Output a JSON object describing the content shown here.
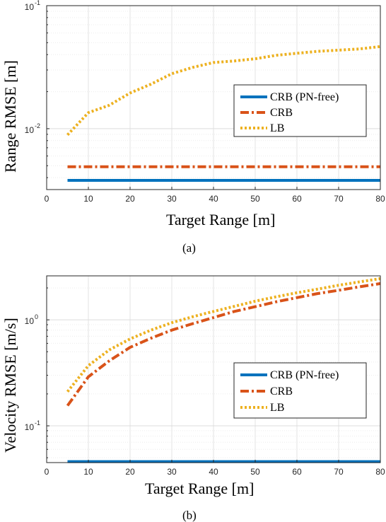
{
  "chart_data": [
    {
      "type": "line",
      "caption": "(a)",
      "xlabel": "Target Range [m]",
      "ylabel": "Range RMSE [m]",
      "xlim": [
        0,
        80
      ],
      "ylim": [
        0.0032,
        0.1
      ],
      "yscale": "log",
      "grid": true,
      "legend_position": "right",
      "x_ticks": [
        "0",
        "10",
        "20",
        "30",
        "40",
        "50",
        "60",
        "70",
        "80"
      ],
      "y_ticks": [
        {
          "base": "10",
          "exp": "-2",
          "value": 0.01
        },
        {
          "base": "10",
          "exp": "-1",
          "value": 0.1
        }
      ],
      "x": [
        5,
        10,
        15,
        20,
        25,
        30,
        35,
        40,
        45,
        50,
        55,
        60,
        65,
        70,
        75,
        80
      ],
      "series": [
        {
          "name": "CRB (PN-free)",
          "color": "#0072BD",
          "dash": "solid",
          "values": [
            0.0038,
            0.0038,
            0.0038,
            0.0038,
            0.0038,
            0.0038,
            0.0038,
            0.0038,
            0.0038,
            0.0038,
            0.0038,
            0.0038,
            0.0038,
            0.0038,
            0.0038,
            0.0038
          ]
        },
        {
          "name": "CRB",
          "color": "#D95319",
          "dash": "dashdot",
          "values": [
            0.0049,
            0.0049,
            0.0049,
            0.0049,
            0.0049,
            0.0049,
            0.0049,
            0.0049,
            0.0049,
            0.0049,
            0.0049,
            0.0049,
            0.0049,
            0.0049,
            0.0049,
            0.0049
          ]
        },
        {
          "name": "LB",
          "color": "#EDB120",
          "dash": "dotted",
          "values": [
            0.0089,
            0.0135,
            0.0155,
            0.0195,
            0.023,
            0.028,
            0.0315,
            0.0345,
            0.0355,
            0.037,
            0.0395,
            0.041,
            0.0425,
            0.0435,
            0.0445,
            0.0465
          ]
        }
      ]
    },
    {
      "type": "line",
      "caption": "(b)",
      "xlabel": "Target Range [m]",
      "ylabel": "Velocity RMSE [m/s]",
      "xlim": [
        0,
        80
      ],
      "ylim": [
        0.045,
        2.6
      ],
      "yscale": "log",
      "grid": true,
      "legend_position": "right",
      "x_ticks": [
        "0",
        "10",
        "20",
        "30",
        "40",
        "50",
        "60",
        "70",
        "80"
      ],
      "y_ticks": [
        {
          "base": "10",
          "exp": "-1",
          "value": 0.1
        },
        {
          "base": "10",
          "exp": "0",
          "value": 1
        }
      ],
      "x": [
        5,
        10,
        15,
        20,
        25,
        30,
        35,
        40,
        45,
        50,
        55,
        60,
        65,
        70,
        75,
        80
      ],
      "series": [
        {
          "name": "CRB (PN-free)",
          "color": "#0072BD",
          "dash": "solid",
          "values": [
            0.046,
            0.046,
            0.046,
            0.046,
            0.046,
            0.046,
            0.046,
            0.046,
            0.046,
            0.046,
            0.046,
            0.046,
            0.046,
            0.046,
            0.046,
            0.046
          ]
        },
        {
          "name": "CRB",
          "color": "#D95319",
          "dash": "dashdot",
          "values": [
            0.155,
            0.29,
            0.41,
            0.55,
            0.67,
            0.8,
            0.92,
            1.05,
            1.2,
            1.33,
            1.48,
            1.62,
            1.77,
            1.9,
            2.05,
            2.2
          ]
        },
        {
          "name": "LB",
          "color": "#EDB120",
          "dash": "dotted",
          "values": [
            0.21,
            0.37,
            0.52,
            0.66,
            0.8,
            0.94,
            1.07,
            1.2,
            1.34,
            1.5,
            1.65,
            1.8,
            1.95,
            2.12,
            2.28,
            2.45
          ]
        }
      ]
    }
  ]
}
